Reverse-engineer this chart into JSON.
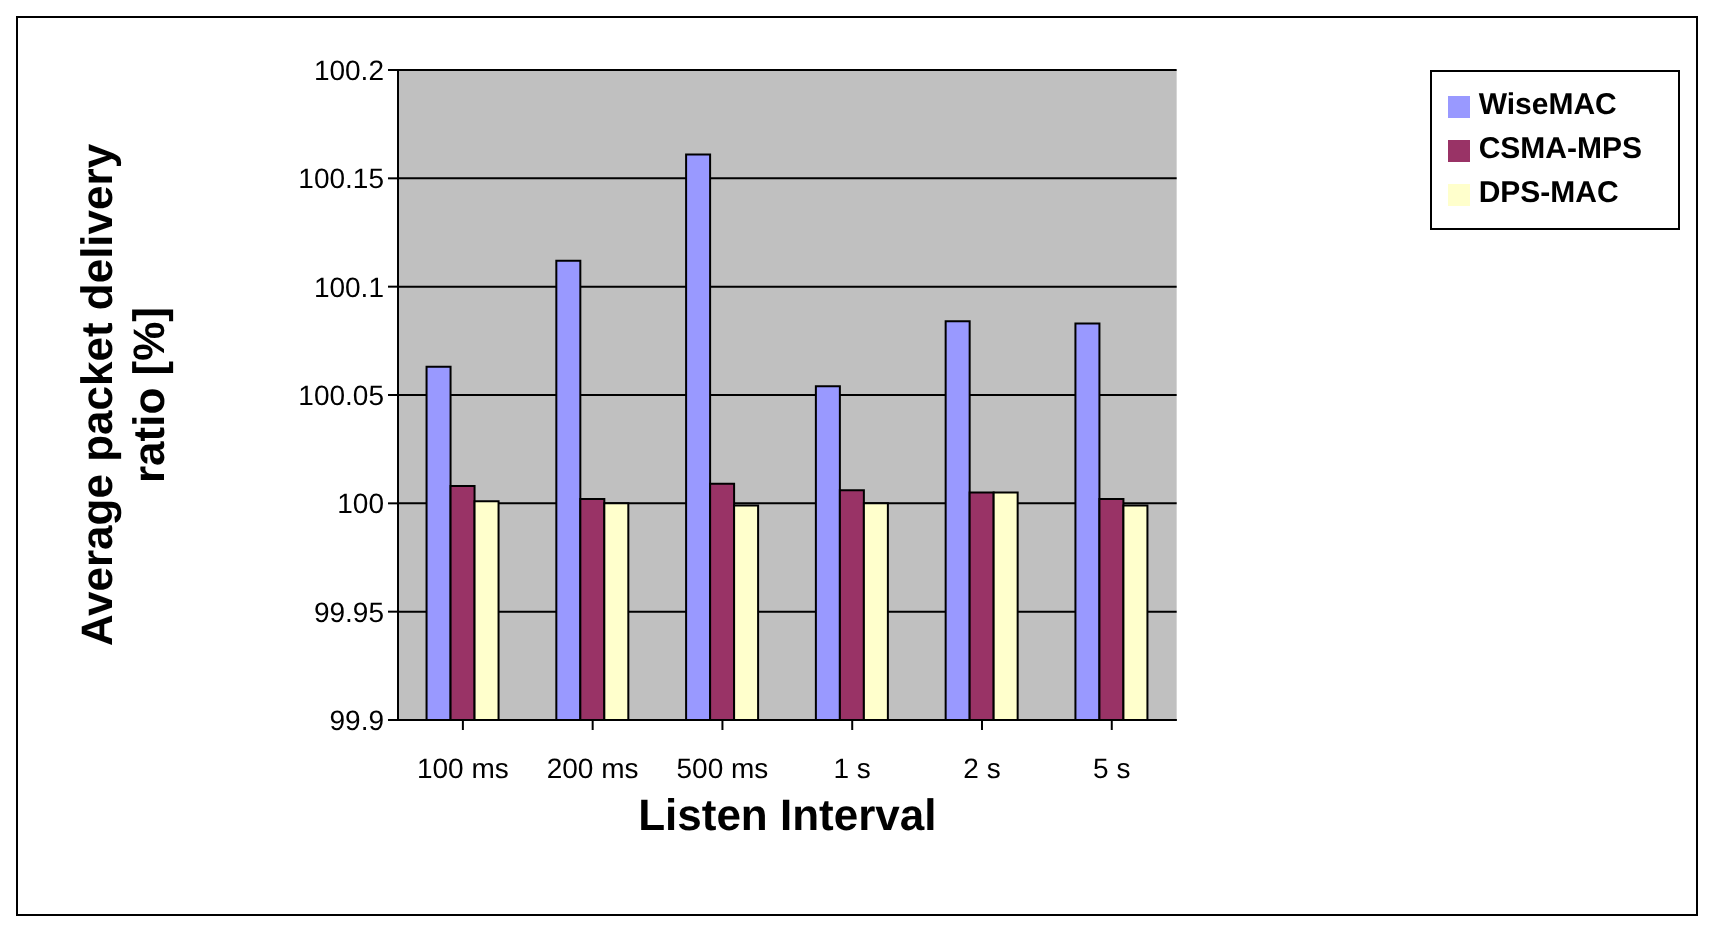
{
  "chart_data": {
    "type": "bar",
    "xlabel": "Listen Interval",
    "ylabel": "Average packet delivery ratio [%]",
    "categories": [
      "100 ms",
      "200 ms",
      "500 ms",
      "1 s",
      "2 s",
      "5 s"
    ],
    "series": [
      {
        "name": "WiseMAC",
        "color": "#9999ff",
        "values": [
          100.063,
          100.112,
          100.161,
          100.054,
          100.084,
          100.083
        ]
      },
      {
        "name": "CSMA-MPS",
        "color": "#993366",
        "values": [
          100.008,
          100.002,
          100.009,
          100.006,
          100.005,
          100.002
        ]
      },
      {
        "name": "DPS-MAC",
        "color": "#ffffcc",
        "values": [
          100.001,
          100.0,
          99.999,
          100.0,
          100.005,
          99.999
        ]
      }
    ],
    "ylim": [
      99.9,
      100.2
    ],
    "yticks": [
      99.9,
      99.95,
      100,
      100.05,
      100.1,
      100.15,
      100.2
    ],
    "grid": "y",
    "legend": "top right"
  }
}
